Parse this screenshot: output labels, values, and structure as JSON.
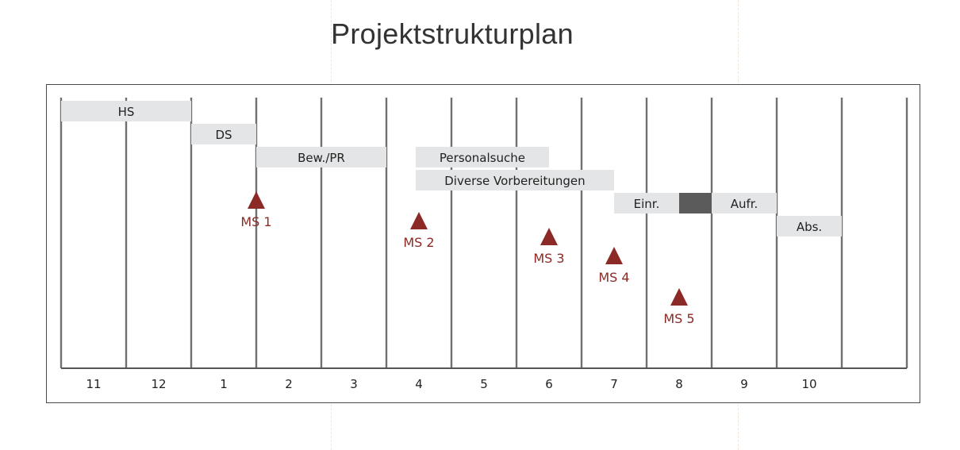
{
  "title": "Projektstrukturplan",
  "colors": {
    "bar": "#e3e5e6",
    "bar_dark": "#5b5b5b",
    "milestone": "#8b2a26",
    "grid": "#707070",
    "axis": "#555555"
  },
  "chart_data": {
    "type": "gantt",
    "title": "Projektstrukturplan",
    "xlabel": "",
    "ylabel": "",
    "categories": [
      "11",
      "12",
      "1",
      "2",
      "3",
      "4",
      "5",
      "6",
      "7",
      "8",
      "9",
      "10"
    ],
    "tasks": [
      {
        "label": "HS",
        "start": 0,
        "end": 2
      },
      {
        "label": "DS",
        "start": 2,
        "end": 3
      },
      {
        "label": "Bew./PR",
        "start": 3,
        "end": 5
      },
      {
        "label": "Personalsuche",
        "start": 5.45,
        "end": 7.5
      },
      {
        "label": "Diverse Vorbereitungen",
        "start": 5.45,
        "end": 8.5
      },
      {
        "label": "Einr.",
        "start": 8.5,
        "end": 9.5
      },
      {
        "label": "",
        "start": 9.5,
        "end": 10,
        "style": "dark"
      },
      {
        "label": "Aufr.",
        "start": 10,
        "end": 11
      },
      {
        "label": "Abs.",
        "start": 11,
        "end": 12
      }
    ],
    "milestones": [
      {
        "label": "MS 1",
        "x": 3
      },
      {
        "label": "MS 2",
        "x": 5.5
      },
      {
        "label": "MS 3",
        "x": 7.5
      },
      {
        "label": "MS 4",
        "x": 8.5
      },
      {
        "label": "MS 5",
        "x": 9.5
      }
    ],
    "grid": true,
    "legend": "none"
  }
}
